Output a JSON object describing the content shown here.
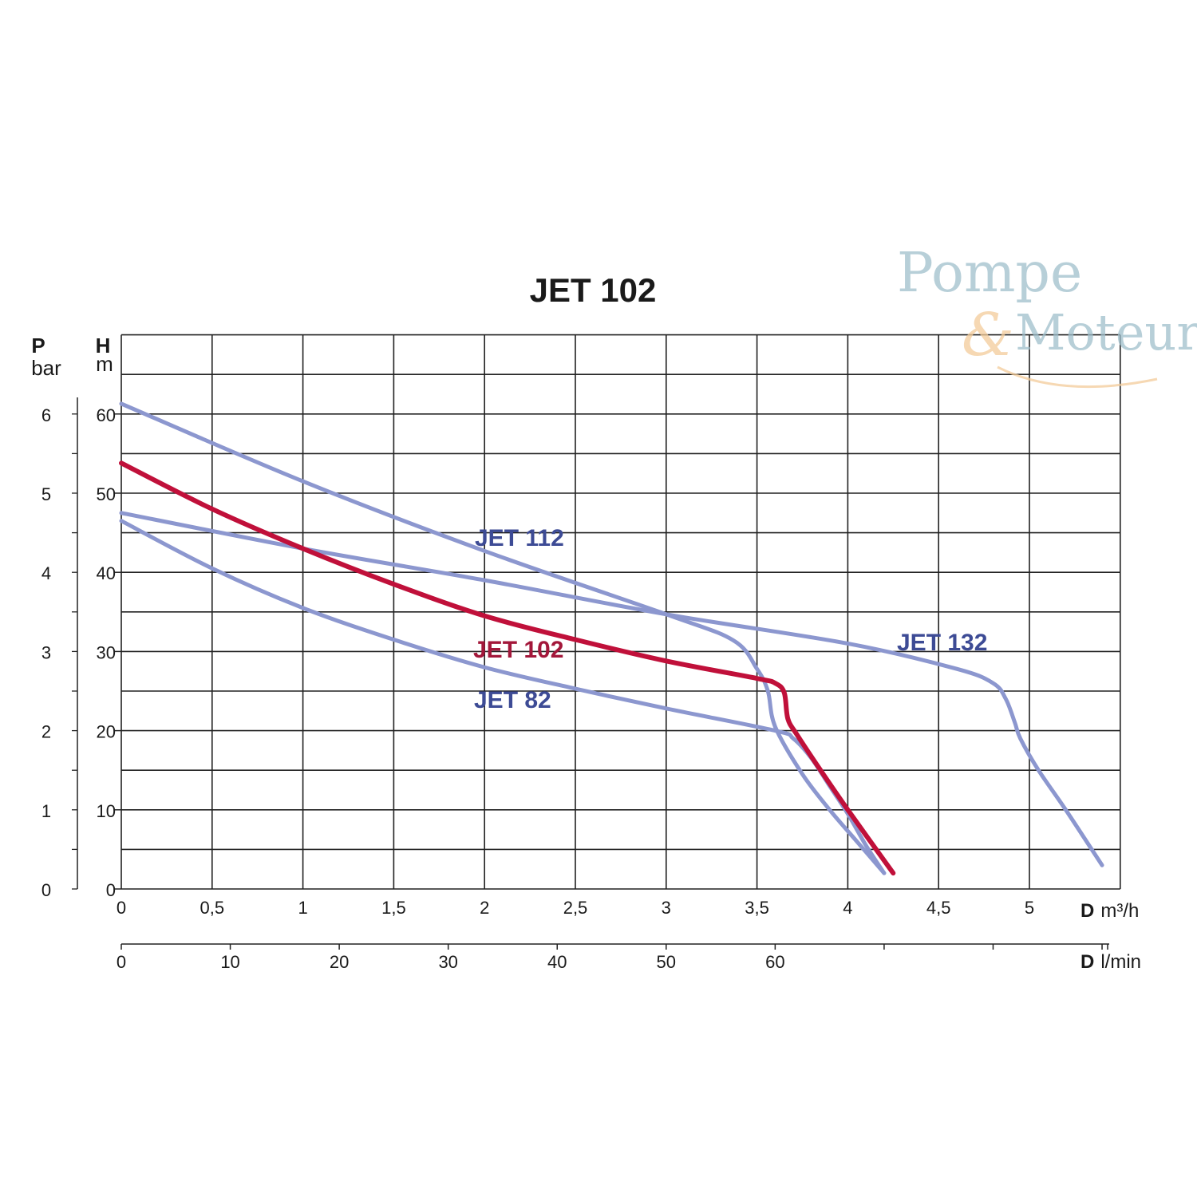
{
  "logo": {
    "line1": "Pompe",
    "amp": "&",
    "line2": "Moteur"
  },
  "chart_data": {
    "type": "line",
    "title": "JET 102",
    "xlabel": {
      "prefix": "D",
      "unit": "m³/h"
    },
    "x2label": {
      "prefix": "D",
      "unit": "l/min"
    },
    "ylabel": {
      "symbol": "H",
      "unit": "m"
    },
    "y2label": {
      "symbol": "P",
      "unit": "bar"
    },
    "xlim": [
      0,
      5.5
    ],
    "ylim": [
      0,
      70
    ],
    "x_ticks": [
      "0",
      "0,5",
      "1",
      "1,5",
      "2",
      "2,5",
      "3",
      "3,5",
      "4",
      "4,5",
      "5"
    ],
    "x2_ticks": [
      "0",
      "10",
      "20",
      "30",
      "40",
      "50",
      "60"
    ],
    "y_ticks": [
      "0",
      "10",
      "20",
      "30",
      "40",
      "50",
      "60"
    ],
    "p_ticks": [
      "0",
      "1",
      "2",
      "3",
      "4",
      "5",
      "6"
    ],
    "grid": true,
    "series": [
      {
        "name": "JET 112",
        "color": "#8c97cf",
        "points": [
          [
            0,
            61.3
          ],
          [
            1,
            51.5
          ],
          [
            2,
            42.7
          ],
          [
            3,
            34.7
          ],
          [
            3.37,
            31.4
          ],
          [
            3.5,
            27.8
          ],
          [
            3.56,
            25
          ],
          [
            3.6,
            20.5
          ],
          [
            3.75,
            14.5
          ],
          [
            3.9,
            10
          ],
          [
            4.05,
            6
          ],
          [
            4.2,
            2
          ]
        ]
      },
      {
        "name": "JET 102",
        "color": "#c0103a",
        "points": [
          [
            0,
            53.8
          ],
          [
            0.5,
            48
          ],
          [
            1,
            43
          ],
          [
            1.5,
            38.5
          ],
          [
            2,
            34.5
          ],
          [
            2.5,
            31.5
          ],
          [
            3,
            28.8
          ],
          [
            3.5,
            26.6
          ],
          [
            3.6,
            26
          ],
          [
            3.65,
            24.8
          ],
          [
            3.67,
            21.5
          ],
          [
            3.72,
            19.5
          ],
          [
            3.85,
            15
          ],
          [
            4,
            10
          ],
          [
            4.25,
            2
          ]
        ]
      },
      {
        "name": "JET 82",
        "color": "#8c97cf",
        "points": [
          [
            0,
            46.5
          ],
          [
            0.5,
            40.5
          ],
          [
            1,
            35.5
          ],
          [
            1.5,
            31.5
          ],
          [
            2,
            28
          ],
          [
            2.5,
            25.3
          ],
          [
            3,
            22.8
          ],
          [
            3.6,
            20
          ],
          [
            3.7,
            19
          ],
          [
            3.8,
            16.5
          ],
          [
            3.9,
            13
          ],
          [
            4,
            9.5
          ],
          [
            4.1,
            5.5
          ],
          [
            4.2,
            2
          ]
        ]
      },
      {
        "name": "JET 132",
        "color": "#8c97cf",
        "points": [
          [
            0,
            47.5
          ],
          [
            1,
            43
          ],
          [
            2,
            39
          ],
          [
            3,
            34.7
          ],
          [
            4,
            31
          ],
          [
            4.6,
            27.8
          ],
          [
            4.8,
            26
          ],
          [
            4.87,
            24
          ],
          [
            4.92,
            21
          ],
          [
            4.95,
            19
          ],
          [
            5.05,
            15
          ],
          [
            5.2,
            10
          ],
          [
            5.4,
            3
          ]
        ]
      }
    ],
    "labels": [
      {
        "text": "JET 112",
        "color": "#3d4b95"
      },
      {
        "text": "JET 102",
        "color": "#a3173a"
      },
      {
        "text": "JET 82",
        "color": "#3d4b95"
      },
      {
        "text": "JET 132",
        "color": "#3d4b95"
      }
    ]
  }
}
